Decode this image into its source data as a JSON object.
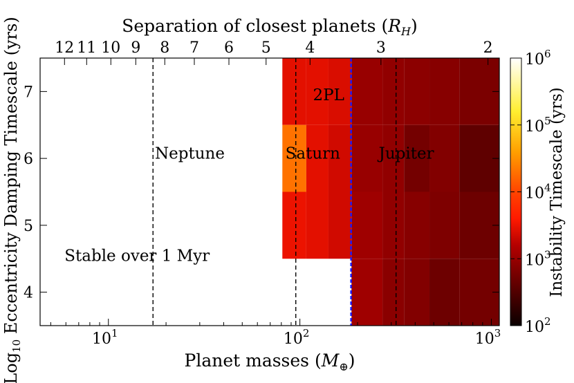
{
  "chart_data": {
    "type": "heatmap",
    "title": "",
    "top_axis_label": "Separation of closest planets (R_H)",
    "top_axis_label_main": "Separation of closest planets (",
    "top_axis_label_sym": "R",
    "top_axis_label_sub": "H",
    "top_axis_label_close": ")",
    "top_ticks": [
      {
        "label": "12",
        "mass": 5.9
      },
      {
        "label": "11",
        "mass": 7.7
      },
      {
        "label": "10",
        "mass": 10.3
      },
      {
        "label": "9",
        "mass": 13.9
      },
      {
        "label": "8",
        "mass": 19.7
      },
      {
        "label": "7",
        "mass": 28.1
      },
      {
        "label": "6",
        "mass": 42.6
      },
      {
        "label": "5",
        "mass": 66.6
      },
      {
        "label": "4",
        "mass": 113
      },
      {
        "label": "3",
        "mass": 265
      },
      {
        "label": "2",
        "mass": 960
      }
    ],
    "xlabel": "Planet masses (M_⊕)",
    "xlabel_main": "Planet masses (",
    "xlabel_sym": "M",
    "xlabel_sub": "⊕",
    "xlabel_close": ")",
    "xscale": "log",
    "xlim": [
      4.4,
      1100
    ],
    "x_ticks": [
      {
        "base": "10",
        "exp": "1",
        "value": 10
      },
      {
        "base": "10",
        "exp": "2",
        "value": 100
      },
      {
        "base": "10",
        "exp": "3",
        "value": 1000
      }
    ],
    "ylabel": "Log10 Eccentricity Damping Timescale (yrs)",
    "ylabel_pre": "Log",
    "ylabel_sub": "10",
    "ylabel_post": " Eccentricity Damping Timescale (yrs)",
    "ylim": [
      3.5,
      7.5
    ],
    "y_ticks": [
      4,
      5,
      6,
      7
    ],
    "colorbar": {
      "label": "Instability Timescale (yrs)",
      "scale": "log",
      "range": [
        100,
        1000000
      ],
      "colormap": "hot",
      "ticks": [
        {
          "base": "10",
          "exp": "2",
          "value": 100
        },
        {
          "base": "10",
          "exp": "3",
          "value": 1000
        },
        {
          "base": "10",
          "exp": "4",
          "value": 10000
        },
        {
          "base": "10",
          "exp": "5",
          "value": 100000
        },
        {
          "base": "10",
          "exp": "6",
          "value": 1000000
        }
      ]
    },
    "mass_bins": [
      81,
      108,
      141,
      186,
      270,
      350,
      475,
      680,
      1100
    ],
    "y_bins": [
      3.5,
      4.5,
      5.5,
      6.5,
      7.5
    ],
    "cells": [
      {
        "row": 3,
        "col": 0,
        "log_t": 3.45
      },
      {
        "row": 3,
        "col": 1,
        "log_t": 3.45
      },
      {
        "row": 3,
        "col": 2,
        "log_t": 3.4
      },
      {
        "row": 3,
        "col": 3,
        "log_t": 3.0
      },
      {
        "row": 3,
        "col": 4,
        "log_t": 2.95
      },
      {
        "row": 3,
        "col": 5,
        "log_t": 2.92
      },
      {
        "row": 3,
        "col": 6,
        "log_t": 2.88
      },
      {
        "row": 3,
        "col": 7,
        "log_t": 2.8
      },
      {
        "row": 3,
        "col": 8,
        "log_t": 2.5
      },
      {
        "row": 2,
        "col": 0,
        "log_t": 4.3
      },
      {
        "row": 2,
        "col": 1,
        "log_t": 3.45
      },
      {
        "row": 2,
        "col": 2,
        "log_t": 3.35
      },
      {
        "row": 2,
        "col": 3,
        "log_t": 3.0
      },
      {
        "row": 2,
        "col": 4,
        "log_t": 2.95
      },
      {
        "row": 2,
        "col": 5,
        "log_t": 2.75
      },
      {
        "row": 2,
        "col": 6,
        "log_t": 2.85
      },
      {
        "row": 2,
        "col": 7,
        "log_t": 2.6
      },
      {
        "row": 2,
        "col": 8,
        "log_t": 2.35
      },
      {
        "row": 1,
        "col": 0,
        "log_t": 3.5
      },
      {
        "row": 1,
        "col": 1,
        "log_t": 3.45
      },
      {
        "row": 1,
        "col": 2,
        "log_t": 3.35
      },
      {
        "row": 1,
        "col": 3,
        "log_t": 3.05
      },
      {
        "row": 1,
        "col": 4,
        "log_t": 2.95
      },
      {
        "row": 1,
        "col": 5,
        "log_t": 2.88
      },
      {
        "row": 1,
        "col": 6,
        "log_t": 2.82
      },
      {
        "row": 1,
        "col": 7,
        "log_t": 2.7
      },
      {
        "row": 1,
        "col": 8,
        "log_t": 2.48
      },
      {
        "row": 0,
        "col": 3,
        "log_t": 3.05
      },
      {
        "row": 0,
        "col": 4,
        "log_t": 2.9
      },
      {
        "row": 0,
        "col": 5,
        "log_t": 2.85
      },
      {
        "row": 0,
        "col": 6,
        "log_t": 2.7
      },
      {
        "row": 0,
        "col": 7,
        "log_t": 2.75
      },
      {
        "row": 0,
        "col": 8,
        "log_t": 2.6
      }
    ],
    "reference_lines": [
      {
        "name": "Neptune",
        "mass": 17.1,
        "color": "#000000"
      },
      {
        "name": "Saturn",
        "mass": 95.2,
        "color": "#000000"
      },
      {
        "name": "2PL",
        "mass": 185,
        "color": "#1a1aff"
      },
      {
        "name": "Jupiter",
        "mass": 317.8,
        "color": "#000000"
      }
    ],
    "annotations": [
      {
        "text": "Neptune",
        "mass": 17.5,
        "y": 6.08,
        "color": "#000000"
      },
      {
        "text": "Saturn",
        "mass": 84,
        "y": 6.08,
        "color": "#ffffff"
      },
      {
        "text": "Jupiter",
        "mass": 258,
        "y": 6.08,
        "color": "#ffffff"
      },
      {
        "text": "2PL",
        "mass": 117,
        "y": 6.95,
        "color": "#2222dd"
      },
      {
        "text": "Stable over 1 Myr",
        "mass": 5.9,
        "y": 4.55,
        "color": "#000000"
      }
    ]
  }
}
